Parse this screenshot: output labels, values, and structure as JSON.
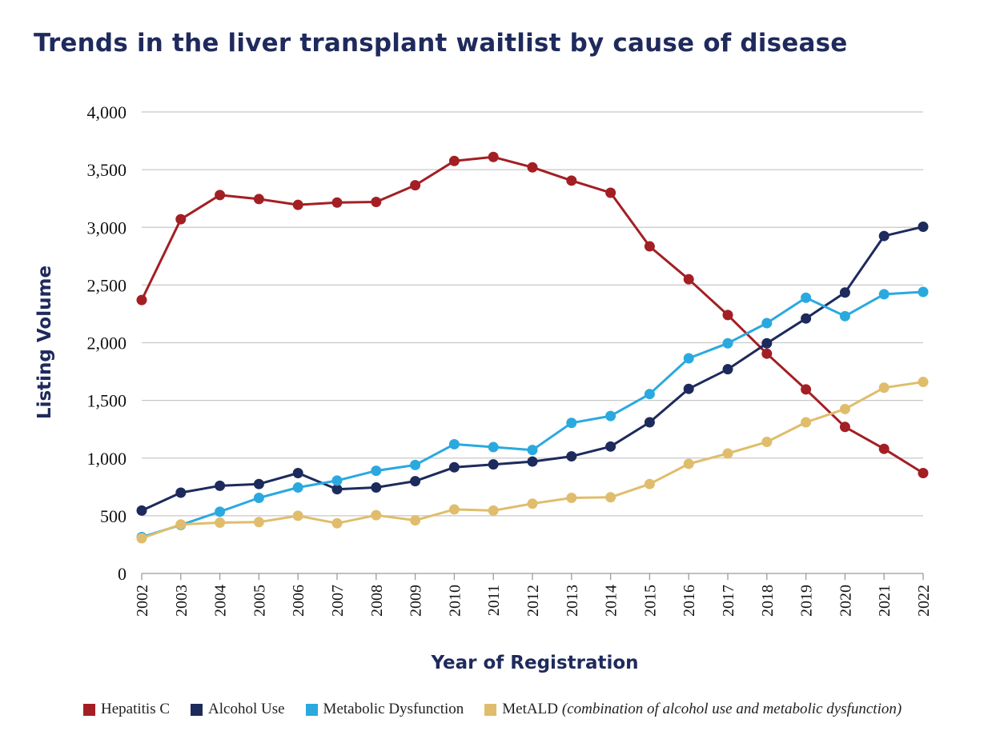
{
  "title": "Trends in the liver transplant waitlist by cause of disease",
  "chart_data": {
    "type": "line",
    "title": "Trends in the liver transplant waitlist by cause of disease",
    "xlabel": "Year of Registration",
    "ylabel": "Listing Volume",
    "ylim": [
      0,
      4000
    ],
    "yticks": [
      "0",
      "500",
      "1,000",
      "1,500",
      "2,000",
      "2,500",
      "3,000",
      "3,500",
      "4,000"
    ],
    "grid": true,
    "legend_position": "bottom",
    "x": [
      "2002",
      "2003",
      "2004",
      "2005",
      "2006",
      "2007",
      "2008",
      "2009",
      "2010",
      "2011",
      "2012",
      "2013",
      "2014",
      "2015",
      "2016",
      "2017",
      "2018",
      "2019",
      "2020",
      "2021",
      "2022"
    ],
    "series": [
      {
        "name": "Hepatitis C",
        "color": "#a31f24",
        "values": [
          2370,
          3070,
          3280,
          3245,
          3195,
          3215,
          3220,
          3365,
          3575,
          3610,
          3520,
          3405,
          3300,
          2835,
          2550,
          2240,
          1905,
          1595,
          1270,
          1080,
          870
        ]
      },
      {
        "name": "Alcohol Use",
        "color": "#1d2a5c",
        "values": [
          545,
          700,
          760,
          775,
          870,
          730,
          745,
          800,
          920,
          945,
          970,
          1015,
          1100,
          1310,
          1600,
          1770,
          1995,
          2210,
          2435,
          2925,
          3005
        ]
      },
      {
        "name": "Metabolic Dysfunction",
        "color": "#2aa9df",
        "values": [
          315,
          420,
          535,
          655,
          745,
          805,
          890,
          940,
          1120,
          1095,
          1070,
          1305,
          1365,
          1555,
          1865,
          1995,
          2170,
          2390,
          2230,
          2420,
          2440
        ]
      },
      {
        "name": "MetALD",
        "note": "(combination of alcohol use and metabolic dysfunction)",
        "color": "#e0bd6c",
        "values": [
          305,
          425,
          440,
          445,
          500,
          435,
          505,
          460,
          555,
          545,
          605,
          655,
          660,
          775,
          950,
          1040,
          1140,
          1310,
          1425,
          1610,
          1660
        ]
      }
    ]
  }
}
